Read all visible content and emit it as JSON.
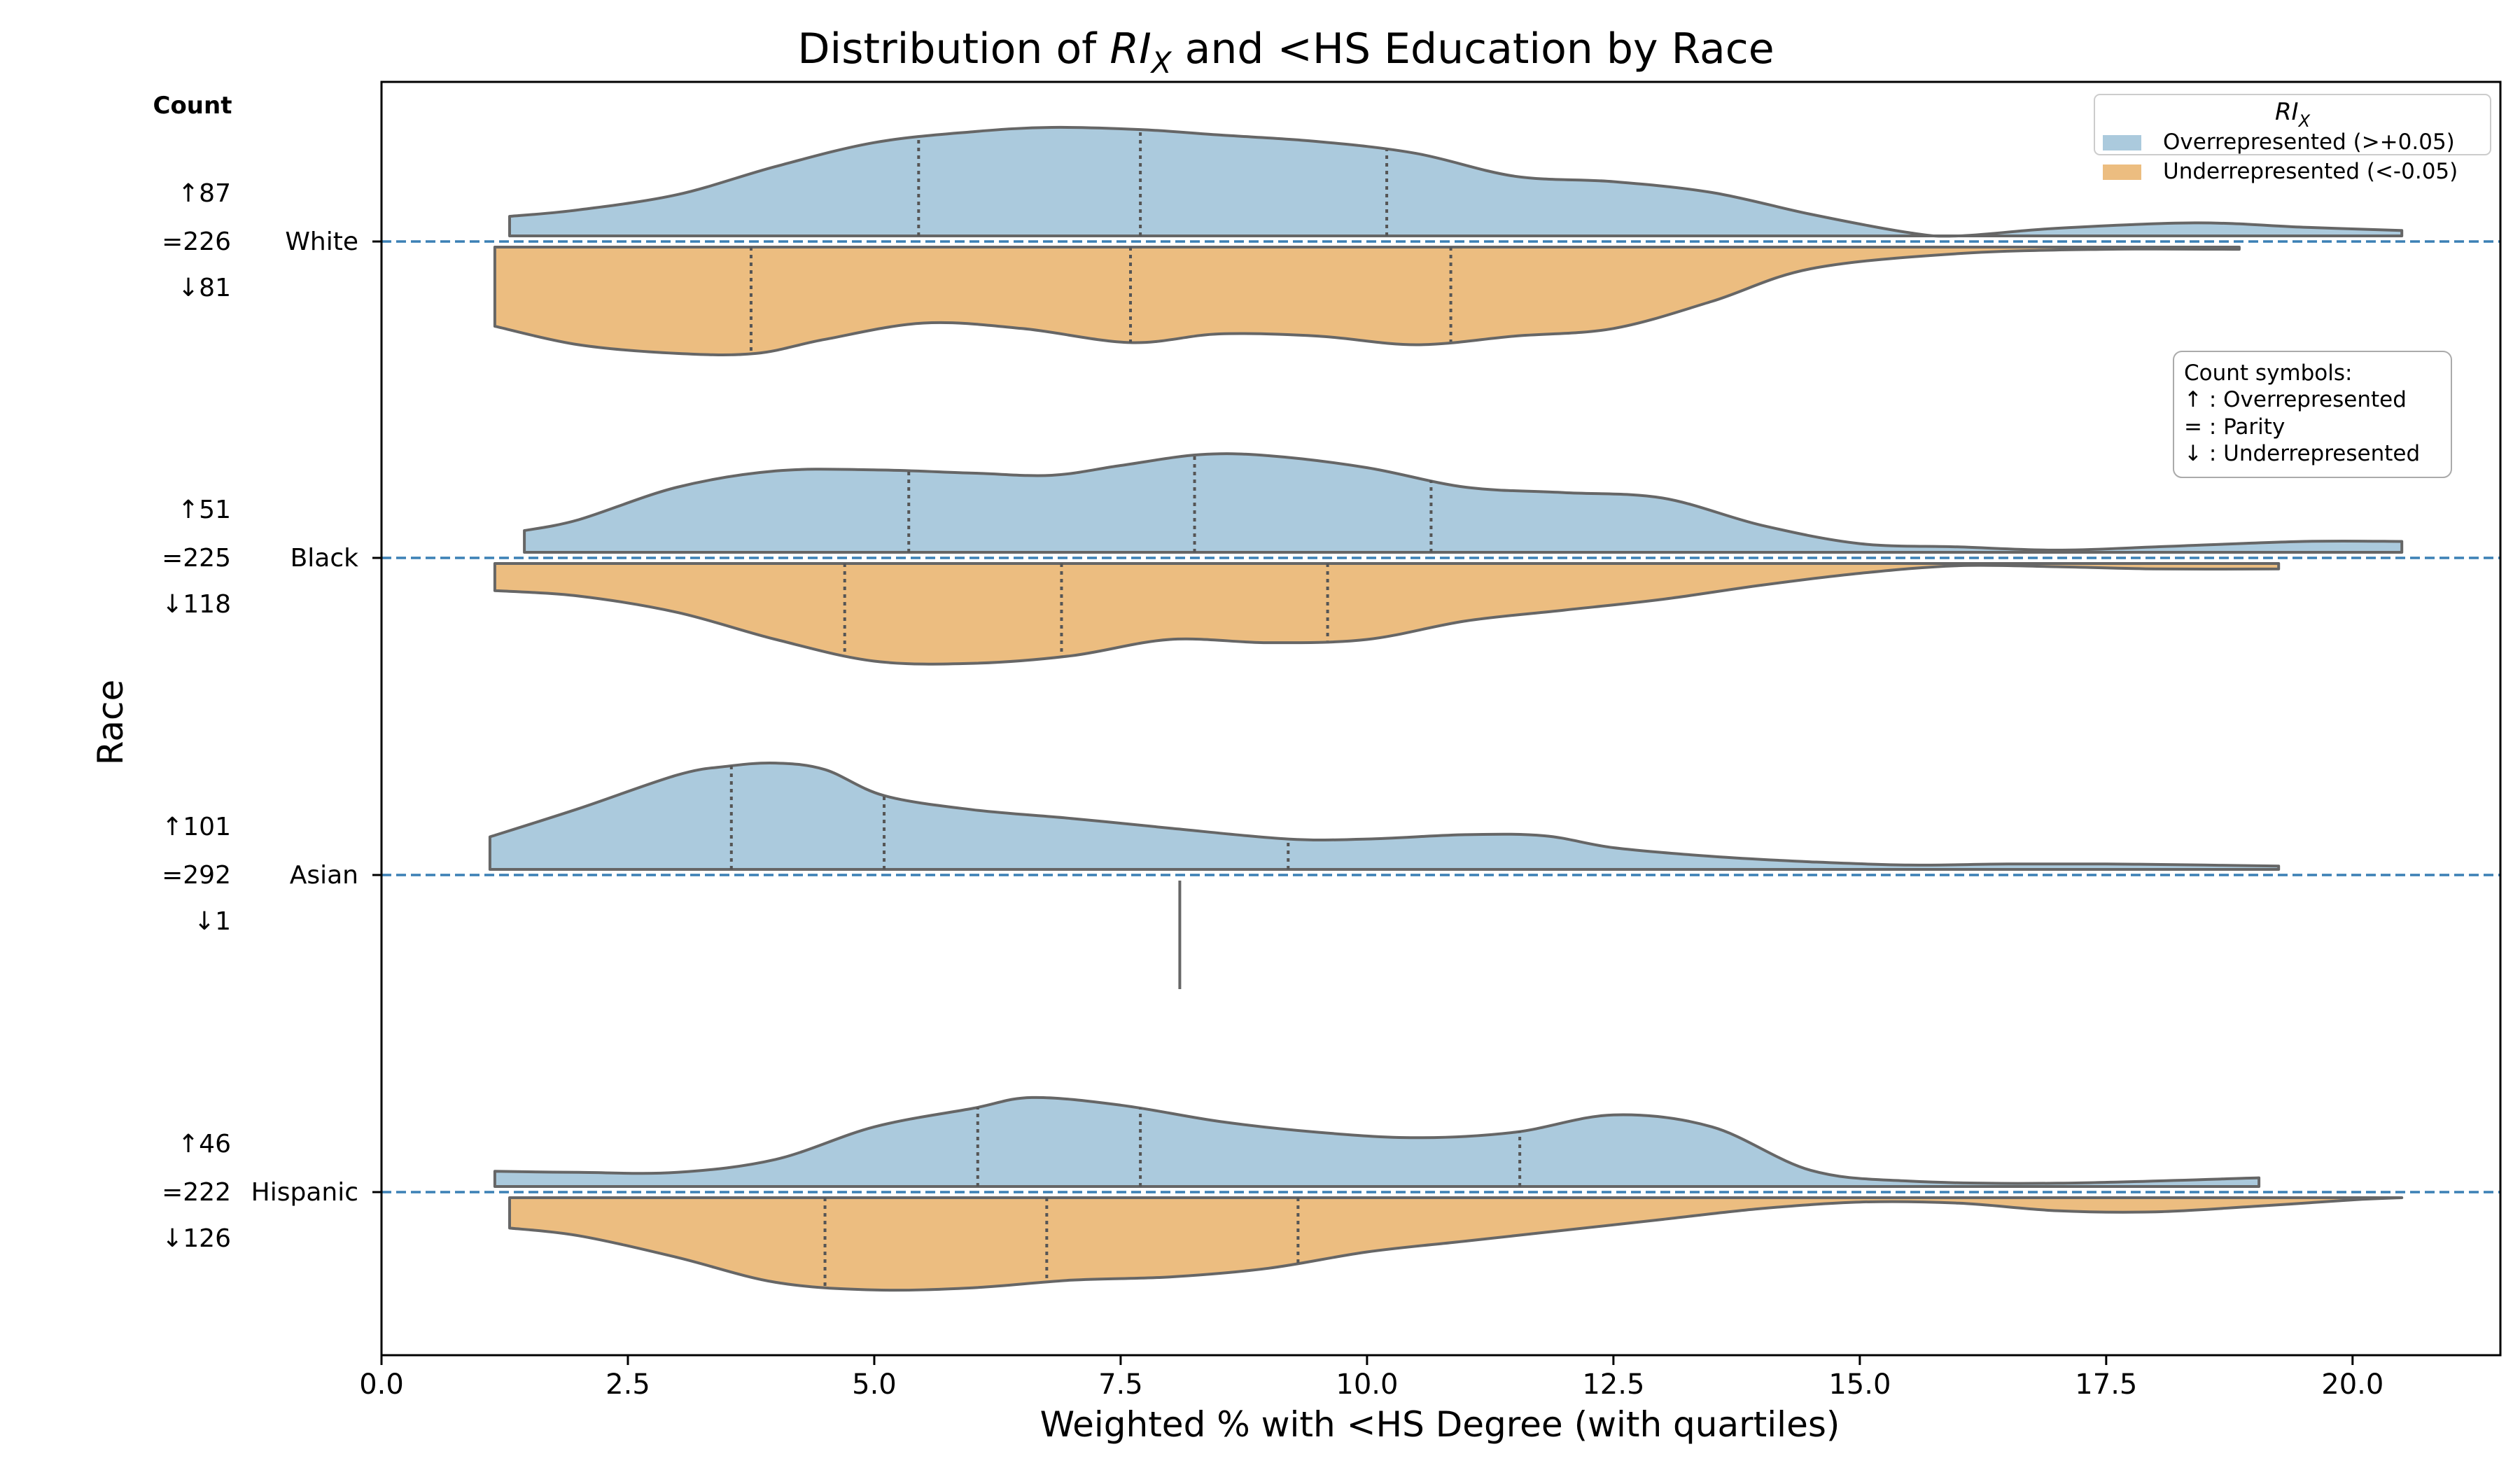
{
  "chart_data": {
    "type": "violin",
    "title_prefix": "Distribution of ",
    "title_rix_main": "RI",
    "title_rix_sub": "X",
    "title_suffix": " and <HS Education by Race",
    "xlabel": "Weighted % with <HS Degree (with quartiles)",
    "ylabel": "Race",
    "xlim": [
      0.0,
      21.5
    ],
    "xticks": [
      0.0,
      2.5,
      5.0,
      7.5,
      10.0,
      12.5,
      15.0,
      17.5,
      20.0
    ],
    "xtick_labels": [
      "0.0",
      "2.5",
      "5.0",
      "7.5",
      "10.0",
      "12.5",
      "15.0",
      "17.5",
      "20.0"
    ],
    "count_header": "Count",
    "colors": {
      "over": "#abcadd",
      "under": "#ecbd80",
      "edge": "#666666",
      "refline": "#3b80b5"
    },
    "legend": {
      "title_main": "RI",
      "title_sub": "X",
      "placement": "top-right",
      "entries": [
        {
          "label": "Overrepresented (>+0.05)",
          "color": "#abcadd"
        },
        {
          "label": "Underrepresented (<-0.05)",
          "color": "#ecbd80"
        }
      ]
    },
    "symbols_box": {
      "lines": [
        "Count symbols:",
        "↑ : Overrepresented",
        "= : Parity",
        "↓ : Underrepresented"
      ]
    },
    "races": [
      {
        "name": "White",
        "counts": {
          "over": "↑87",
          "parity": "=226",
          "under": "↓81"
        },
        "over": {
          "min": 1.3,
          "max": 20.5,
          "quartiles": [
            5.45,
            7.7,
            10.2
          ],
          "density": [
            [
              1.3,
              0.18
            ],
            [
              2.0,
              0.24
            ],
            [
              3.0,
              0.38
            ],
            [
              4.0,
              0.64
            ],
            [
              5.0,
              0.86
            ],
            [
              6.0,
              0.96
            ],
            [
              6.8,
              1.0
            ],
            [
              7.7,
              0.98
            ],
            [
              8.5,
              0.93
            ],
            [
              9.5,
              0.87
            ],
            [
              10.5,
              0.76
            ],
            [
              11.5,
              0.55
            ],
            [
              12.5,
              0.5
            ],
            [
              13.5,
              0.4
            ],
            [
              14.5,
              0.2
            ],
            [
              15.5,
              0.03
            ],
            [
              16.0,
              0.0
            ],
            [
              17.0,
              0.07
            ],
            [
              18.4,
              0.12
            ],
            [
              19.5,
              0.08
            ],
            [
              20.5,
              0.05
            ]
          ]
        },
        "under": {
          "min": 1.15,
          "max": 18.85,
          "quartiles": [
            3.75,
            7.6,
            10.85
          ],
          "density": [
            [
              1.15,
              0.73
            ],
            [
              2.0,
              0.9
            ],
            [
              3.0,
              0.98
            ],
            [
              3.8,
              0.98
            ],
            [
              4.5,
              0.85
            ],
            [
              5.5,
              0.7
            ],
            [
              6.5,
              0.75
            ],
            [
              7.6,
              0.88
            ],
            [
              8.5,
              0.8
            ],
            [
              9.5,
              0.82
            ],
            [
              10.5,
              0.9
            ],
            [
              11.5,
              0.82
            ],
            [
              12.5,
              0.75
            ],
            [
              13.5,
              0.5
            ],
            [
              14.5,
              0.2
            ],
            [
              16.0,
              0.06
            ],
            [
              17.5,
              0.02
            ],
            [
              18.85,
              0.02
            ]
          ]
        }
      },
      {
        "name": "Black",
        "counts": {
          "over": "↑51",
          "parity": "=225",
          "under": "↓118"
        },
        "over": {
          "min": 1.45,
          "max": 20.5,
          "quartiles": [
            5.35,
            8.25,
            10.65
          ],
          "density": [
            [
              1.45,
              0.2
            ],
            [
              2.0,
              0.3
            ],
            [
              3.0,
              0.6
            ],
            [
              4.0,
              0.75
            ],
            [
              5.0,
              0.76
            ],
            [
              6.0,
              0.73
            ],
            [
              6.8,
              0.71
            ],
            [
              7.5,
              0.8
            ],
            [
              8.3,
              0.9
            ],
            [
              9.0,
              0.89
            ],
            [
              10.0,
              0.78
            ],
            [
              11.0,
              0.6
            ],
            [
              12.0,
              0.55
            ],
            [
              13.0,
              0.5
            ],
            [
              14.0,
              0.25
            ],
            [
              15.0,
              0.08
            ],
            [
              16.0,
              0.05
            ],
            [
              17.0,
              0.02
            ],
            [
              18.0,
              0.05
            ],
            [
              19.5,
              0.1
            ],
            [
              20.5,
              0.1
            ]
          ]
        },
        "under": {
          "min": 1.15,
          "max": 19.25,
          "quartiles": [
            4.7,
            6.9,
            9.6
          ],
          "density": [
            [
              1.15,
              0.25
            ],
            [
              2.0,
              0.3
            ],
            [
              3.0,
              0.45
            ],
            [
              4.0,
              0.7
            ],
            [
              5.0,
              0.9
            ],
            [
              6.0,
              0.92
            ],
            [
              7.0,
              0.85
            ],
            [
              8.0,
              0.7
            ],
            [
              9.0,
              0.73
            ],
            [
              10.0,
              0.7
            ],
            [
              11.0,
              0.53
            ],
            [
              12.0,
              0.43
            ],
            [
              13.0,
              0.33
            ],
            [
              14.0,
              0.2
            ],
            [
              15.0,
              0.09
            ],
            [
              16.0,
              0.02
            ],
            [
              17.0,
              0.03
            ],
            [
              18.0,
              0.05
            ],
            [
              19.25,
              0.05
            ]
          ]
        }
      },
      {
        "name": "Asian",
        "counts": {
          "over": "↑101",
          "parity": "=292",
          "under": "↓1"
        },
        "over": {
          "min": 1.1,
          "max": 19.25,
          "quartiles": [
            3.55,
            5.1,
            9.2
          ],
          "density": [
            [
              1.1,
              0.3
            ],
            [
              2.0,
              0.56
            ],
            [
              3.0,
              0.87
            ],
            [
              3.5,
              0.95
            ],
            [
              4.0,
              0.98
            ],
            [
              4.5,
              0.92
            ],
            [
              5.1,
              0.68
            ],
            [
              6.0,
              0.55
            ],
            [
              7.0,
              0.47
            ],
            [
              8.0,
              0.38
            ],
            [
              9.2,
              0.28
            ],
            [
              10.0,
              0.28
            ],
            [
              11.0,
              0.32
            ],
            [
              11.8,
              0.31
            ],
            [
              12.5,
              0.2
            ],
            [
              13.5,
              0.12
            ],
            [
              14.5,
              0.07
            ],
            [
              15.5,
              0.04
            ],
            [
              16.5,
              0.05
            ],
            [
              17.5,
              0.05
            ],
            [
              18.5,
              0.04
            ],
            [
              19.25,
              0.03
            ]
          ]
        },
        "under": {
          "single": 8.1
        }
      },
      {
        "name": "Hispanic",
        "counts": {
          "over": "↑46",
          "parity": "=222",
          "under": "↓126"
        },
        "over": {
          "min": 1.15,
          "max": 19.05,
          "quartiles": [
            6.05,
            7.7,
            11.55
          ],
          "density": [
            [
              1.15,
              0.14
            ],
            [
              2.0,
              0.13
            ],
            [
              3.0,
              0.13
            ],
            [
              4.0,
              0.25
            ],
            [
              5.0,
              0.55
            ],
            [
              6.0,
              0.72
            ],
            [
              6.6,
              0.82
            ],
            [
              7.5,
              0.75
            ],
            [
              8.5,
              0.6
            ],
            [
              9.5,
              0.5
            ],
            [
              10.5,
              0.45
            ],
            [
              11.5,
              0.5
            ],
            [
              12.5,
              0.66
            ],
            [
              13.5,
              0.55
            ],
            [
              14.5,
              0.15
            ],
            [
              15.5,
              0.05
            ],
            [
              17.0,
              0.03
            ],
            [
              19.05,
              0.08
            ]
          ]
        },
        "under": {
          "min": 1.3,
          "max": 20.5,
          "quartiles": [
            4.5,
            6.75,
            9.3
          ],
          "density": [
            [
              1.3,
              0.28
            ],
            [
              2.0,
              0.35
            ],
            [
              3.0,
              0.55
            ],
            [
              4.0,
              0.78
            ],
            [
              5.0,
              0.85
            ],
            [
              6.0,
              0.83
            ],
            [
              7.0,
              0.76
            ],
            [
              8.0,
              0.73
            ],
            [
              9.0,
              0.65
            ],
            [
              10.0,
              0.5
            ],
            [
              11.0,
              0.4
            ],
            [
              12.0,
              0.3
            ],
            [
              13.0,
              0.2
            ],
            [
              14.0,
              0.1
            ],
            [
              15.0,
              0.04
            ],
            [
              16.0,
              0.05
            ],
            [
              17.0,
              0.12
            ],
            [
              18.0,
              0.13
            ],
            [
              19.0,
              0.08
            ],
            [
              20.0,
              0.02
            ],
            [
              20.5,
              0.0
            ]
          ]
        }
      }
    ]
  }
}
